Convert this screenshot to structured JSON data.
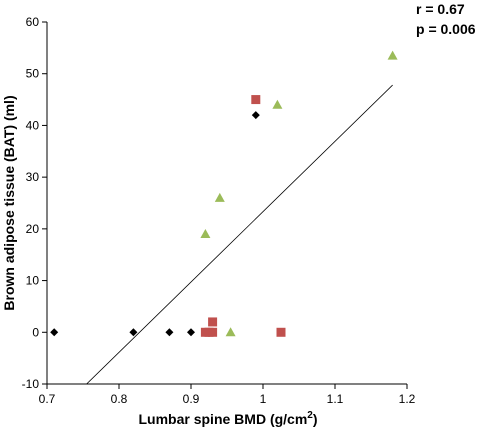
{
  "chart_data": {
    "type": "scatter",
    "title": "",
    "xlabel": "Lumbar spine BMD (g/cm",
    "xlabel_sup": "2",
    "xlabel_close": ")",
    "ylabel": "Brown adipose tissue (BAT) (ml)",
    "xlim": [
      0.7,
      1.2
    ],
    "ylim": [
      -10,
      60
    ],
    "xticks": [
      "0.7",
      "0.8",
      "0.9",
      "1",
      "1.1",
      "1.2"
    ],
    "yticks": [
      "-10",
      "0",
      "10",
      "20",
      "30",
      "40",
      "50",
      "60"
    ],
    "grid": false,
    "legend": "none",
    "annotations": [
      "r = 0.67",
      "p = 0.006"
    ],
    "series": [
      {
        "marker": "diamond",
        "color": "#000000",
        "points": [
          {
            "x": 0.71,
            "y": 0
          },
          {
            "x": 0.82,
            "y": 0
          },
          {
            "x": 0.87,
            "y": 0
          },
          {
            "x": 0.9,
            "y": 0
          },
          {
            "x": 0.99,
            "y": 42
          }
        ]
      },
      {
        "marker": "square",
        "color": "#c0504d",
        "points": [
          {
            "x": 0.92,
            "y": 0
          },
          {
            "x": 0.925,
            "y": 0
          },
          {
            "x": 0.93,
            "y": 0
          },
          {
            "x": 0.93,
            "y": 2
          },
          {
            "x": 0.99,
            "y": 45
          },
          {
            "x": 1.025,
            "y": 0
          }
        ]
      },
      {
        "marker": "triangle",
        "color": "#9bbb59",
        "points": [
          {
            "x": 0.92,
            "y": 19
          },
          {
            "x": 0.94,
            "y": 26
          },
          {
            "x": 0.955,
            "y": 0
          },
          {
            "x": 1.02,
            "y": 44
          },
          {
            "x": 1.18,
            "y": 53.5
          }
        ]
      }
    ],
    "trendline": {
      "from": {
        "x": 0.755,
        "y": -10
      },
      "to": {
        "x": 1.18,
        "y": 47.8
      },
      "color": "#000000"
    }
  }
}
